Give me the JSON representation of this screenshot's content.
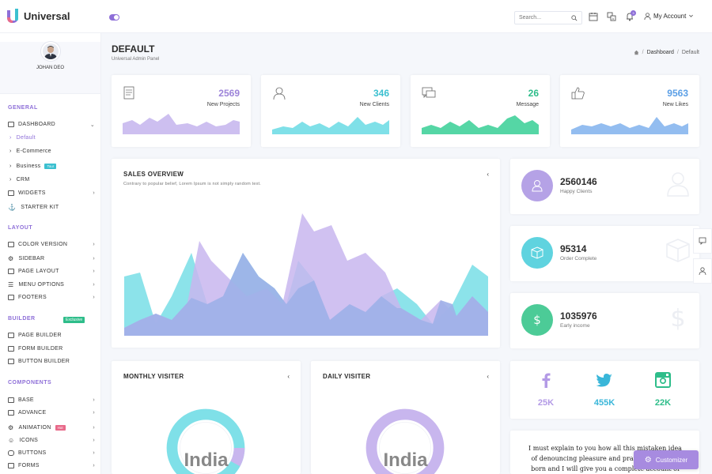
{
  "app": {
    "name": "Universal"
  },
  "header": {
    "search_placeholder": "Search...",
    "notification_count": "3",
    "account_label": "My Account"
  },
  "sidebar": {
    "user_name": "JOHAN DEO",
    "sections": {
      "general": "GENERAL",
      "layout": "LAYOUT",
      "builder": "BUILDER",
      "builder_tag": "Exclusive",
      "components": "COMPONENTS"
    },
    "items": {
      "dashboard": "DASHBOARD",
      "default": "Default",
      "ecommerce": "E-Commerce",
      "business": "Business",
      "business_tag": "Tour",
      "crm": "CRM",
      "widgets": "WIDGETS",
      "starter_kit": "STARTER KIT",
      "color_version": "COLOR VERSION",
      "sidebar": "SIDEBAR",
      "page_layout": "PAGE LAYOUT",
      "menu_options": "MENU OPTIONS",
      "footers": "FOOTERS",
      "page_builder": "PAGE BUILDER",
      "form_builder": "FORM BUILDER",
      "button_builder": "BUTTON BUILDER",
      "base": "BASE",
      "advance": "ADVANCE",
      "animation": "ANIMATION",
      "animation_tag": "Hot",
      "icons": "ICONS",
      "buttons": "BUTTONS",
      "forms": "FORMS"
    }
  },
  "page": {
    "title": "DEFAULT",
    "subtitle": "Universal Admin Panel",
    "breadcrumb": [
      "Dashboard",
      "Default"
    ]
  },
  "stats": [
    {
      "value": "2569",
      "label": "New Projects",
      "color": "#9d84d9",
      "fill": "#cdbff0"
    },
    {
      "value": "346",
      "label": "New Clients",
      "color": "#3cc0d0",
      "fill": "#7fe0e8"
    },
    {
      "value": "26",
      "label": "Message",
      "color": "#2ebd8a",
      "fill": "#55d6a5"
    },
    {
      "value": "9563",
      "label": "New Likes",
      "color": "#5b9fe6",
      "fill": "#93bdf0"
    }
  ],
  "sales": {
    "title": "SALES OVERVIEW",
    "subtitle": "Contrary to popular belief, Lorem Ipsum is not simply random text."
  },
  "kpis": [
    {
      "value": "2560146",
      "label": "Happy Clients",
      "color": "#b5a2e6",
      "icon": "user-icon"
    },
    {
      "value": "95314",
      "label": "Order Complete",
      "color": "#5fd3df",
      "icon": "box-icon"
    },
    {
      "value": "1035976",
      "label": "Early income",
      "color": "#4ccb97",
      "icon": "dollar-icon"
    }
  ],
  "monthly": {
    "title": "MONTHLY VISITER",
    "center_label": "India"
  },
  "daily": {
    "title": "DAILY VISITER",
    "center_label": "India"
  },
  "social": [
    {
      "name": "facebook-icon",
      "value": "25K",
      "color": "#b39ae6"
    },
    {
      "name": "twitter-icon",
      "value": "455K",
      "color": "#39b6d9"
    },
    {
      "name": "instagram-icon",
      "value": "22K",
      "color": "#2ebd8a"
    }
  ],
  "quote": {
    "text": "I must explain to you how all this mistaken idea of denouncing pleasure and praising pain was born and I will give you a complete account of the system"
  },
  "customizer": {
    "label": "Customizer"
  }
}
